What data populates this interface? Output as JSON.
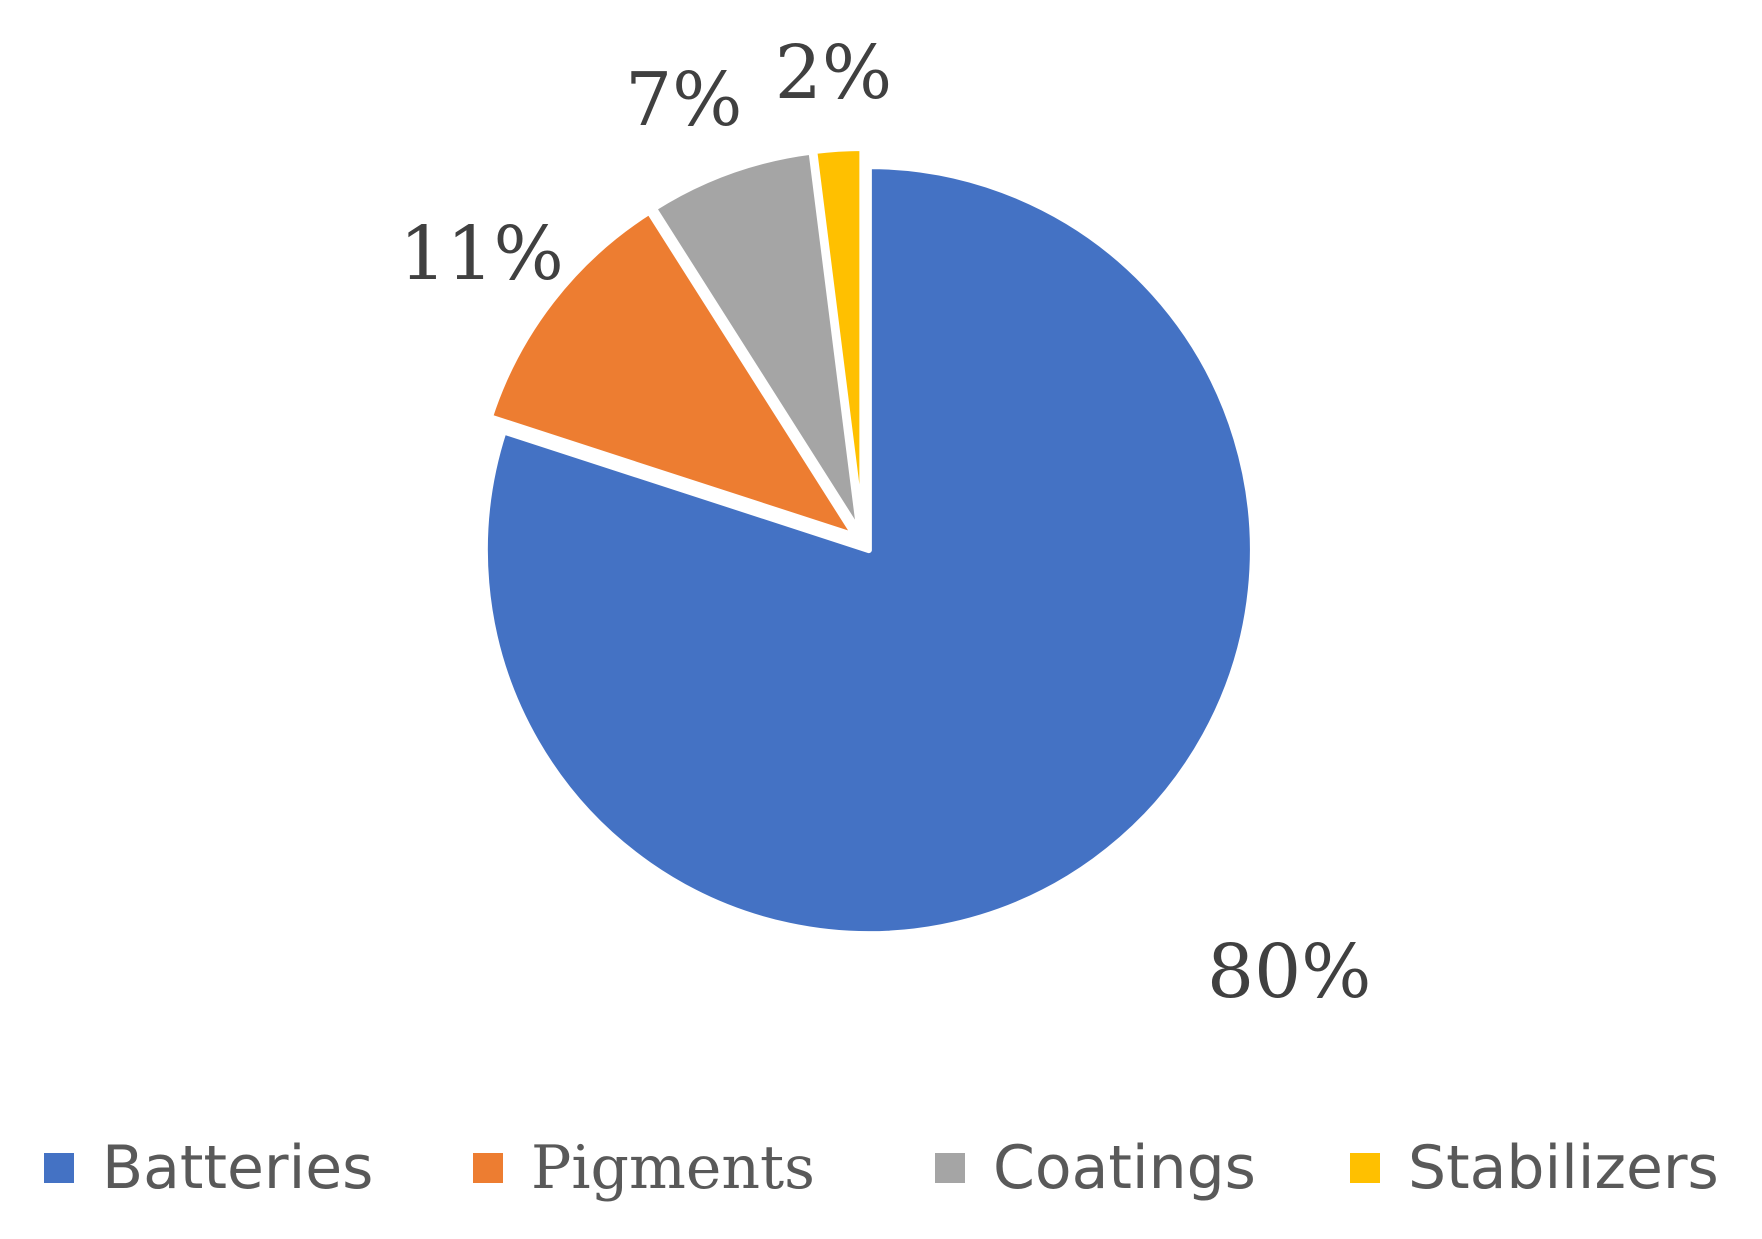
{
  "chart_data": {
    "type": "pie",
    "categories": [
      "Batteries",
      "Pigments",
      "Coatings",
      "Stabilizers"
    ],
    "values": [
      80,
      11,
      7,
      2
    ],
    "data_labels": [
      "80%",
      "11%",
      "7%",
      "2%"
    ],
    "colors": [
      "#4472C4",
      "#ED7D31",
      "#A5A5A5",
      "#FFC000"
    ],
    "start_angle_deg": 0,
    "direction": "clockwise",
    "exploded": true,
    "legend": "bottom"
  }
}
